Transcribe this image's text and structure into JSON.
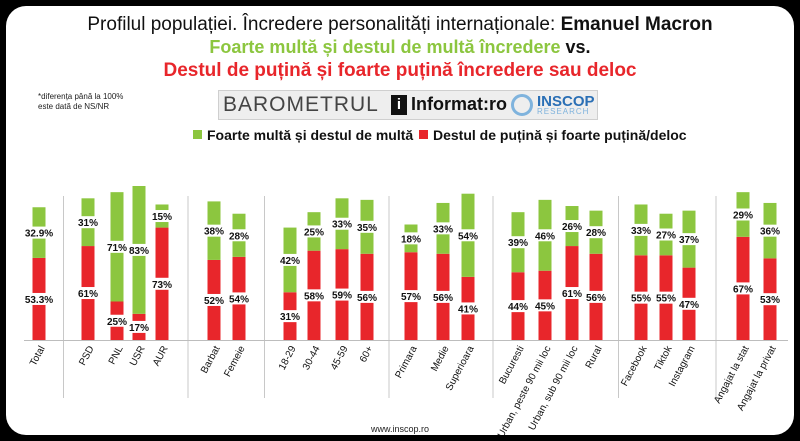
{
  "title": {
    "prefix": "Profilul populației. Încredere personalități internaționale: ",
    "name": "Emanuel Macron",
    "line2": "Foarte multă și destul de multă încredere",
    "line2_vs": " vs.",
    "line3": "Destul de puțină și foarte puțină încredere sau deloc"
  },
  "note": [
    "*diferența până la 100%",
    "este dată de NS/NR"
  ],
  "logos": {
    "barometrul": "BAROMETRUL",
    "informat": "Informat:ro",
    "informat_icon": "i",
    "inscop": "INSCOP",
    "research": "RESEARCH"
  },
  "legend": {
    "green": "Foarte multă și destul de multă",
    "red": "Destul de puțină și foarte puțină/deloc"
  },
  "footer": "www.inscop.ro",
  "colors": {
    "green": "#8cc63f",
    "red": "#e8262b",
    "background": "#ffffff",
    "frame": "#000000"
  },
  "chart_data": {
    "type": "bar",
    "stacked": true,
    "categories": [
      "Total",
      "PSD",
      "PNL",
      "USR",
      "AUR",
      "Barbat",
      "Femeie",
      "18-29",
      "30-44",
      "45-59",
      "60+",
      "Primara",
      "Medie",
      "Superioara",
      "Bucuresti",
      "Urban, peste 90 mii loc",
      "Urban, sub 90 mii loc",
      "Rural",
      "Facebook",
      "Tiktok",
      "Instagram",
      "Angajat la stat",
      "Angajat la privat"
    ],
    "groups": [
      [
        "Total"
      ],
      [
        "PSD",
        "PNL",
        "USR",
        "AUR"
      ],
      [
        "Barbat",
        "Femeie"
      ],
      [
        "18-29",
        "30-44",
        "45-59",
        "60+"
      ],
      [
        "Primara",
        "Medie",
        "Superioara"
      ],
      [
        "Bucuresti",
        "Urban, peste 90 mii loc",
        "Urban, sub 90 mii loc",
        "Rural"
      ],
      [
        "Facebook",
        "Tiktok",
        "Instagram"
      ],
      [
        "Angajat la stat",
        "Angajat la privat"
      ]
    ],
    "series": [
      {
        "name": "Destul de puțină și foarte puțină/deloc",
        "color": "#e8262b",
        "values": [
          53.3,
          61,
          25,
          17,
          73,
          52,
          54,
          31,
          58,
          59,
          56,
          57,
          56,
          41,
          44,
          45,
          61,
          56,
          55,
          55,
          47,
          67,
          53
        ],
        "labels": [
          "53.3%",
          "61%",
          "25%",
          "17%",
          "73%",
          "52%",
          "54%",
          "31%",
          "58%",
          "59%",
          "56%",
          "57%",
          "56%",
          "41%",
          "44%",
          "45%",
          "61%",
          "56%",
          "55%",
          "55%",
          "47%",
          "67%",
          "53%"
        ]
      },
      {
        "name": "Foarte multă și destul de multă",
        "color": "#8cc63f",
        "values": [
          32.9,
          31,
          71,
          83,
          15,
          38,
          28,
          42,
          25,
          33,
          35,
          18,
          33,
          54,
          39,
          46,
          26,
          28,
          33,
          27,
          37,
          29,
          36
        ],
        "labels": [
          "32.9%",
          "31%",
          "71%",
          "83%",
          "15%",
          "38%",
          "28%",
          "42%",
          "25%",
          "33%",
          "35%",
          "18%",
          "33%",
          "54%",
          "39%",
          "46%",
          "26%",
          "28%",
          "33%",
          "27%",
          "37%",
          "29%",
          "36%"
        ]
      }
    ],
    "ylim": [
      0,
      100
    ],
    "grid": false,
    "legend_position": "top",
    "xlabel": "",
    "ylabel": ""
  }
}
